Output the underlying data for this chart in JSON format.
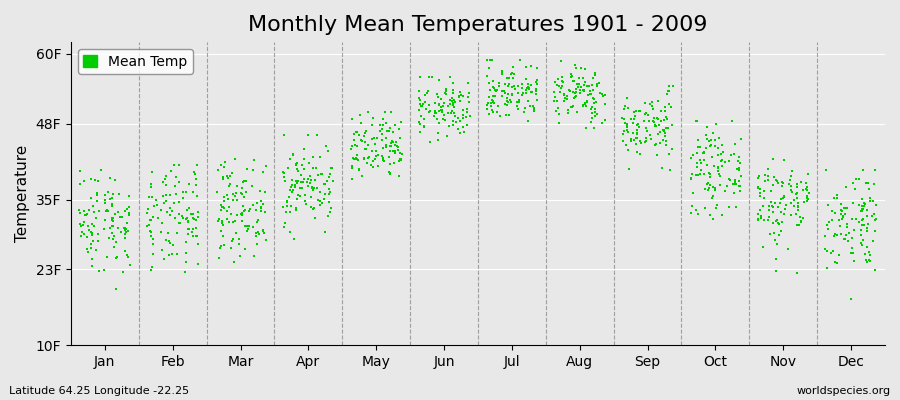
{
  "title": "Monthly Mean Temperatures 1901 - 2009",
  "ylabel": "Temperature",
  "subtitle_left": "Latitude 64.25 Longitude -22.25",
  "subtitle_right": "worldspecies.org",
  "legend_label": "Mean Temp",
  "dot_color": "#00CC00",
  "background_color": "#E8E8E8",
  "months": [
    "Jan",
    "Feb",
    "Mar",
    "Apr",
    "May",
    "Jun",
    "Jul",
    "Aug",
    "Sep",
    "Oct",
    "Nov",
    "Dec"
  ],
  "yticks": [
    10,
    23,
    35,
    48,
    60
  ],
  "ytick_labels": [
    "10F",
    "23F",
    "35F",
    "48F",
    "60F"
  ],
  "ylim": [
    10,
    62
  ],
  "num_years": 109,
  "monthly_means_F": [
    31.5,
    31.5,
    33.5,
    37.5,
    43.5,
    50.5,
    53.5,
    53.0,
    47.5,
    40.0,
    34.5,
    31.5
  ],
  "monthly_stds_F": [
    4.5,
    4.5,
    4.0,
    3.5,
    3.0,
    2.5,
    2.5,
    2.5,
    3.0,
    3.5,
    4.0,
    4.5
  ],
  "monthly_mins_F": [
    18.0,
    18.0,
    21.0,
    28.0,
    36.0,
    44.5,
    47.0,
    46.0,
    40.0,
    31.0,
    22.0,
    18.0
  ],
  "monthly_maxs_F": [
    40.0,
    41.0,
    42.0,
    46.0,
    50.0,
    56.0,
    59.0,
    59.0,
    54.5,
    48.5,
    42.0,
    40.0
  ],
  "title_fontsize": 16,
  "axis_fontsize": 11,
  "tick_fontsize": 10,
  "legend_fontsize": 10,
  "marker_size": 3.5
}
